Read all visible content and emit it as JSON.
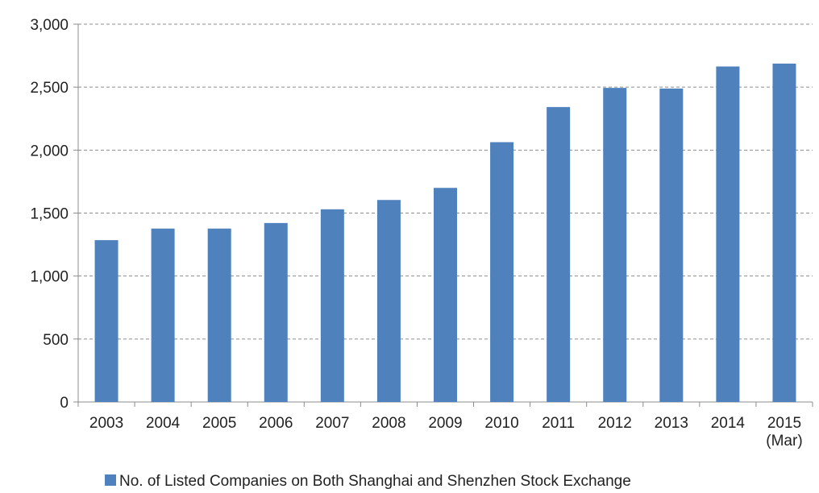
{
  "chart_data": {
    "type": "bar",
    "categories": [
      "2003",
      "2004",
      "2005",
      "2006",
      "2007",
      "2008",
      "2009",
      "2010",
      "2011",
      "2012",
      "2013",
      "2014",
      "2015\n(Mar)"
    ],
    "series": [
      {
        "name": "No. of Listed Companies on Both Shanghai and Shenzhen Stock Exchange",
        "color": "#4f81bd",
        "values": [
          1285,
          1377,
          1377,
          1421,
          1530,
          1604,
          1700,
          2063,
          2342,
          2494,
          2489,
          2664,
          2687
        ]
      }
    ],
    "title": "",
    "xlabel": "",
    "ylabel": "",
    "ylim": [
      0,
      3000
    ],
    "yticks": [
      0,
      500,
      1000,
      1500,
      2000,
      2500,
      3000
    ],
    "ytick_labels": [
      "0",
      "500",
      "1,000",
      "1,500",
      "2,000",
      "2,500",
      "3,000"
    ],
    "grid": true,
    "legend_position": "bottom-center"
  }
}
